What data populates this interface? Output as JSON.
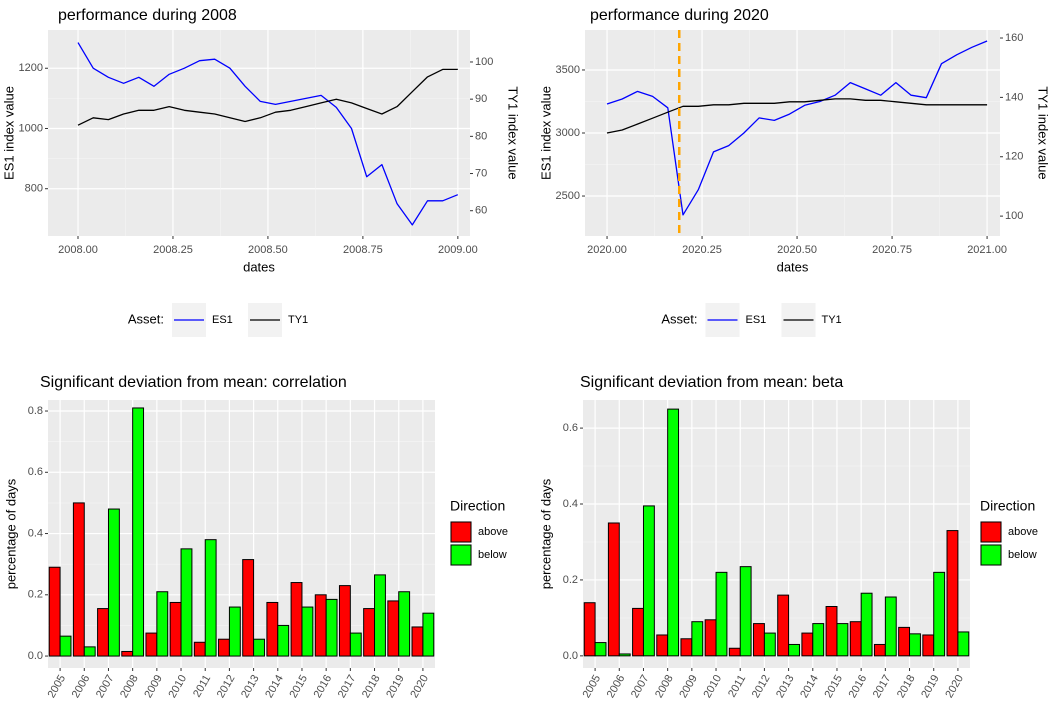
{
  "chart_data": [
    {
      "type": "line",
      "title": "performance during 2008",
      "x_label": "dates",
      "y_label": "ES1 index value",
      "y2_label": "TY1 index value",
      "legend_title": "Asset:",
      "legend": "bottom",
      "x": [
        2008,
        2008.04,
        2008.08,
        2008.12,
        2008.16,
        2008.2,
        2008.24,
        2008.28,
        2008.32,
        2008.36,
        2008.4,
        2008.44,
        2008.48,
        2008.52,
        2008.56,
        2008.6,
        2008.64,
        2008.68,
        2008.72,
        2008.76,
        2008.8,
        2008.84,
        2008.88,
        2008.92,
        2008.96,
        2009
      ],
      "series": [
        {
          "name": "ES1",
          "color": "#0000ff",
          "values": [
            1285,
            1200,
            1170,
            1150,
            1170,
            1140,
            1180,
            1200,
            1225,
            1230,
            1200,
            1140,
            1090,
            1080,
            1090,
            1100,
            1110,
            1070,
            1000,
            840,
            880,
            750,
            680,
            760,
            760,
            780
          ]
        },
        {
          "name": "TY1",
          "color": "#000000",
          "axis": "y2",
          "values": [
            83,
            85,
            84.5,
            86,
            87,
            87,
            88,
            87,
            86.5,
            86,
            85,
            84,
            85,
            86.5,
            87,
            88,
            89,
            90,
            89,
            87.5,
            86,
            88,
            92,
            96,
            98,
            98
          ]
        }
      ],
      "xlim": [
        2007.921,
        2009.032
      ],
      "xticks": [
        {
          "value": 2008,
          "label": "2008.00"
        },
        {
          "value": 2008.25,
          "label": "2008.25"
        },
        {
          "value": 2008.5,
          "label": "2008.50"
        },
        {
          "value": 2008.75,
          "label": "2008.75"
        },
        {
          "value": 2009,
          "label": "2009.00"
        }
      ],
      "ylim": [
        643,
        1327
      ],
      "yticks": [
        800,
        1000,
        1200
      ],
      "y2lim": [
        53.2,
        108.6
      ],
      "y2ticks": [
        60,
        70,
        80,
        90,
        100
      ],
      "grid": true
    },
    {
      "type": "line",
      "title": "performance during 2020",
      "x_label": "dates",
      "y_label": "ES1 index value",
      "y2_label": "TY1 index value",
      "legend_title": "Asset:",
      "legend": "bottom",
      "x": [
        2020,
        2020.04,
        2020.08,
        2020.12,
        2020.16,
        2020.2,
        2020.24,
        2020.28,
        2020.32,
        2020.36,
        2020.4,
        2020.44,
        2020.48,
        2020.52,
        2020.56,
        2020.6,
        2020.64,
        2020.68,
        2020.72,
        2020.76,
        2020.8,
        2020.84,
        2020.88,
        2020.92,
        2020.96,
        2021
      ],
      "series": [
        {
          "name": "ES1",
          "color": "#0000ff",
          "values": [
            3230,
            3270,
            3330,
            3290,
            3200,
            2350,
            2550,
            2850,
            2900,
            3000,
            3120,
            3100,
            3150,
            3220,
            3250,
            3300,
            3400,
            3350,
            3300,
            3400,
            3300,
            3280,
            3550,
            3620,
            3680,
            3730
          ]
        },
        {
          "name": "TY1",
          "color": "#000000",
          "axis": "y2",
          "values": [
            128,
            129,
            131,
            133,
            135,
            137,
            137,
            137.5,
            137.5,
            138,
            138,
            138,
            138.5,
            138.5,
            139,
            139.5,
            139.5,
            139,
            139,
            138.5,
            138,
            137.5,
            137.5,
            137.5,
            137.5,
            137.5
          ]
        }
      ],
      "vline": {
        "value": 2020.19,
        "color": "#ffa500"
      },
      "xlim": [
        2019.942,
        2021.034
      ],
      "xticks": [
        {
          "value": 2020,
          "label": "2020.00"
        },
        {
          "value": 2020.25,
          "label": "2020.25"
        },
        {
          "value": 2020.5,
          "label": "2020.50"
        },
        {
          "value": 2020.75,
          "label": "2020.75"
        },
        {
          "value": 2021,
          "label": "2021.00"
        }
      ],
      "ylim": [
        2183,
        3817
      ],
      "yticks": [
        2500,
        3000,
        3500
      ],
      "y2lim": [
        93.3,
        162.7
      ],
      "y2ticks": [
        100,
        120,
        140,
        160
      ],
      "grid": true
    },
    {
      "type": "bar",
      "title": "Significant deviation from mean: correlation",
      "y_label": "percentage of days",
      "legend_title": "Direction",
      "legend": "right",
      "categories": [
        "2005",
        "2006",
        "2007",
        "2008",
        "2009",
        "2010",
        "2011",
        "2012",
        "2013",
        "2014",
        "2015",
        "2016",
        "2017",
        "2018",
        "2019",
        "2020"
      ],
      "series": [
        {
          "name": "above",
          "color": "#ff0000",
          "values": [
            0.29,
            0.5,
            0.155,
            0.015,
            0.075,
            0.175,
            0.045,
            0.055,
            0.315,
            0.175,
            0.24,
            0.2,
            0.23,
            0.155,
            0.18,
            0.095
          ]
        },
        {
          "name": "below",
          "color": "#00ff00",
          "values": [
            0.065,
            0.03,
            0.48,
            0.81,
            0.21,
            0.35,
            0.38,
            0.16,
            0.055,
            0.1,
            0.16,
            0.185,
            0.075,
            0.265,
            0.21,
            0.14
          ]
        }
      ],
      "ylim": [
        -0.039,
        0.836
      ],
      "yticks": [
        {
          "value": 0,
          "label": "0.0"
        },
        0.2,
        0.4,
        0.6,
        0.8
      ],
      "grid": true
    },
    {
      "type": "bar",
      "title": "Significant deviation from mean: beta",
      "y_label": "percentage of days",
      "legend_title": "Direction",
      "legend": "right",
      "categories": [
        "2005",
        "2006",
        "2007",
        "2008",
        "2009",
        "2010",
        "2011",
        "2012",
        "2013",
        "2014",
        "2015",
        "2016",
        "2017",
        "2018",
        "2019",
        "2020"
      ],
      "series": [
        {
          "name": "above",
          "color": "#ff0000",
          "values": [
            0.14,
            0.35,
            0.125,
            0.055,
            0.045,
            0.095,
            0.02,
            0.085,
            0.16,
            0.06,
            0.13,
            0.09,
            0.03,
            0.075,
            0.055,
            0.33
          ]
        },
        {
          "name": "below",
          "color": "#00ff00",
          "values": [
            0.035,
            0.005,
            0.395,
            0.65,
            0.09,
            0.22,
            0.235,
            0.06,
            0.03,
            0.085,
            0.085,
            0.165,
            0.155,
            0.058,
            0.22,
            0.063
          ]
        }
      ],
      "ylim": [
        -0.032,
        0.674
      ],
      "yticks": [
        {
          "value": 0,
          "label": "0.0"
        },
        0.2,
        0.4,
        0.6
      ],
      "grid": true
    }
  ]
}
